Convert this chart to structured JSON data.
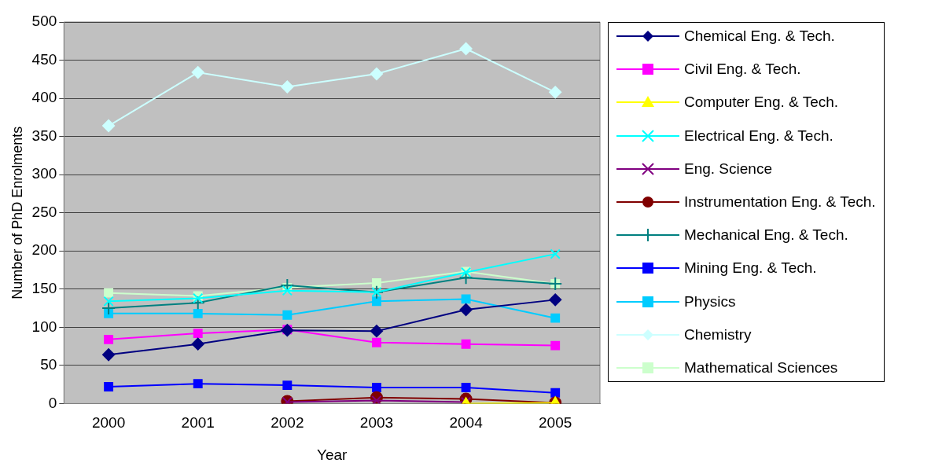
{
  "chart_data": {
    "type": "line",
    "xlabel": "Year",
    "ylabel": "Number of PhD Enrolments",
    "categories": [
      "2000",
      "2001",
      "2002",
      "2003",
      "2004",
      "2005"
    ],
    "ylim": [
      0,
      500
    ],
    "yticks": [
      0,
      50,
      100,
      150,
      200,
      250,
      300,
      350,
      400,
      450,
      500
    ],
    "grid": "y",
    "legend": "right",
    "series": [
      {
        "name": "Chemical Eng. & Tech.",
        "color": "#000080",
        "marker": "diamond",
        "values": [
          64,
          78,
          96,
          95,
          123,
          136
        ]
      },
      {
        "name": "Civil Eng. & Tech.",
        "color": "#ff00ff",
        "marker": "square",
        "values": [
          84,
          92,
          97,
          80,
          78,
          76
        ]
      },
      {
        "name": "Computer Eng. & Tech.",
        "color": "#ffff00",
        "marker": "triangle",
        "values": [
          null,
          null,
          null,
          null,
          0,
          1
        ]
      },
      {
        "name": "Electrical Eng. & Tech.",
        "color": "#00ffff",
        "marker": "cross",
        "values": [
          134,
          138,
          148,
          146,
          172,
          196
        ]
      },
      {
        "name": "Eng. Science",
        "color": "#800080",
        "marker": "cross",
        "values": [
          null,
          null,
          2,
          4,
          2,
          null
        ]
      },
      {
        "name": "Instrumentation Eng. & Tech.",
        "color": "#800000",
        "marker": "circle",
        "values": [
          null,
          null,
          3,
          8,
          6,
          1
        ]
      },
      {
        "name": "Mechanical Eng. & Tech.",
        "color": "#008080",
        "marker": "plus",
        "values": [
          125,
          132,
          155,
          146,
          165,
          157
        ]
      },
      {
        "name": "Mining Eng. & Tech.",
        "color": "#0000ff",
        "marker": "square",
        "values": [
          22,
          26,
          24,
          21,
          21,
          14
        ]
      },
      {
        "name": "Physics",
        "color": "#00ccff",
        "marker": "square",
        "values": [
          118,
          118,
          116,
          134,
          137,
          112
        ]
      },
      {
        "name": "Chemistry",
        "color": "#ccffff",
        "marker": "diamond",
        "values": [
          364,
          434,
          415,
          432,
          465,
          408
        ]
      },
      {
        "name": "Mathematical Sciences",
        "color": "#ccffcc",
        "marker": "square",
        "values": [
          145,
          141,
          152,
          158,
          173,
          157
        ]
      }
    ]
  }
}
